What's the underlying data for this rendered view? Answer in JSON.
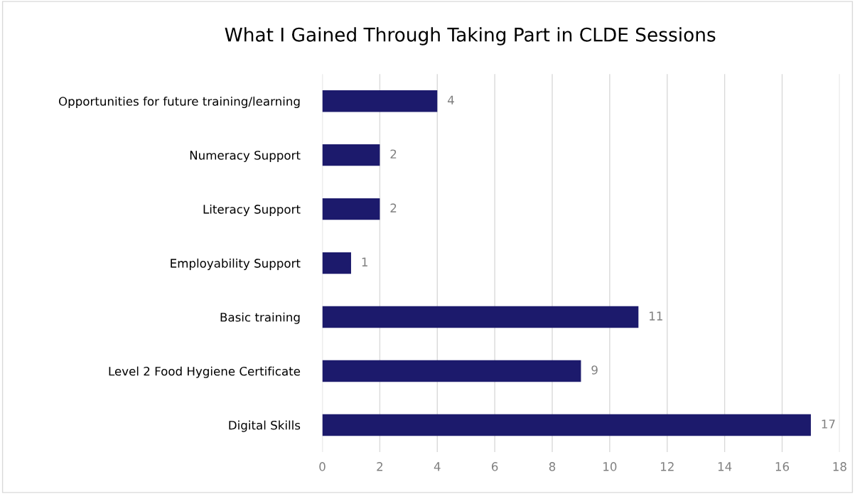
{
  "chart_data": {
    "type": "bar",
    "orientation": "horizontal",
    "title": "What I Gained Through Taking Part in CLDE Sessions",
    "categories": [
      "Opportunities for future training/learning",
      "Numeracy Support",
      "Literacy Support",
      "Employability Support",
      "Basic training",
      "Level 2 Food Hygiene Certificate",
      "Digital Skills"
    ],
    "values": [
      4,
      2,
      2,
      1,
      11,
      9,
      17
    ],
    "color": "#1c1a6c",
    "xlim": [
      0,
      18
    ],
    "xticks": [
      0,
      2,
      4,
      6,
      8,
      10,
      12,
      14,
      16,
      18
    ],
    "grid": "x",
    "data_labels": true
  }
}
